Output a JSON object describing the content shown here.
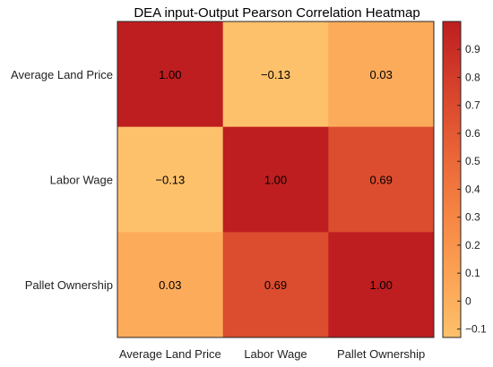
{
  "chart_data": {
    "type": "heatmap",
    "title": "DEA input-Output Pearson Correlation Heatmap",
    "xlabel": "",
    "ylabel": "",
    "x_categories": [
      "Average Land Price",
      "Labor Wage",
      "Pallet Ownership"
    ],
    "y_categories": [
      "Average Land Price",
      "Labor Wage",
      "Pallet Ownership"
    ],
    "values": [
      [
        1.0,
        -0.13,
        0.03
      ],
      [
        -0.13,
        1.0,
        0.69
      ],
      [
        0.03,
        0.69,
        1.0
      ]
    ],
    "cell_labels": [
      [
        "1.00",
        "−0.13",
        "0.03"
      ],
      [
        "−0.13",
        "1.00",
        "0.69"
      ],
      [
        "0.03",
        "0.69",
        "1.00"
      ]
    ],
    "colorbar": {
      "range": [
        -0.13,
        1.0
      ],
      "ticks": [
        -0.1,
        0,
        0.1,
        0.2,
        0.3,
        0.4,
        0.5,
        0.6,
        0.7,
        0.8,
        0.9
      ],
      "tick_labels": [
        "−0.1",
        "0",
        "0.1",
        "0.2",
        "0.3",
        "0.4",
        "0.5",
        "0.6",
        "0.7",
        "0.8",
        "0.9"
      ],
      "colormap": [
        "#fdc16b",
        "#fba254",
        "#f58343",
        "#e86136",
        "#d5402b",
        "#be1e20"
      ],
      "placement": "right"
    },
    "grid": false
  }
}
